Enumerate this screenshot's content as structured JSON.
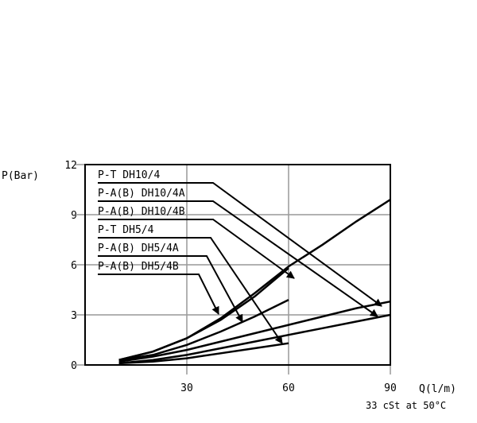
{
  "chart_data": {
    "type": "line",
    "y_label": "P(Bar)",
    "x_label": "Q(l/m)",
    "note": "33 cSt at 50°C",
    "xlim": [
      0,
      90
    ],
    "xticks": [
      30,
      60,
      90
    ],
    "ylim": [
      0,
      12
    ],
    "yticks": [
      0,
      3,
      6,
      9,
      12
    ],
    "grid": true,
    "color": "#000000",
    "series": [
      {
        "x": [
          10,
          20,
          30,
          40,
          50,
          60,
          70,
          80,
          90
        ],
        "values": [
          0.3,
          0.8,
          1.6,
          2.8,
          4.3,
          5.9,
          7.2,
          8.6,
          9.9
        ]
      },
      {
        "x": [
          10,
          20,
          30,
          40,
          50,
          60
        ],
        "values": [
          0.3,
          0.8,
          1.6,
          2.7,
          4.1,
          5.8
        ]
      },
      {
        "x": [
          10,
          20,
          30,
          40,
          50,
          60
        ],
        "values": [
          0.3,
          0.6,
          1.2,
          2.0,
          2.9,
          3.9
        ]
      },
      {
        "x": [
          10,
          20,
          30,
          40,
          50,
          60,
          70,
          80,
          90
        ],
        "values": [
          0.2,
          0.5,
          0.9,
          1.4,
          1.9,
          2.4,
          2.9,
          3.4,
          3.8
        ]
      },
      {
        "x": [
          10,
          20,
          30,
          40,
          50,
          60,
          70,
          80,
          90
        ],
        "values": [
          0.1,
          0.3,
          0.6,
          1.0,
          1.4,
          1.8,
          2.2,
          2.6,
          3.0
        ]
      },
      {
        "x": [
          10,
          20,
          30,
          40,
          50,
          60
        ],
        "values": [
          0.1,
          0.2,
          0.4,
          0.7,
          1.0,
          1.3
        ]
      }
    ],
    "annotations": [
      "P-T DH10/4",
      "P-A(B) DH10/4A",
      "P-A(B) DH10/4B",
      "P-T DH5/4",
      "P-A(B) DH5/4A",
      "P-A(B) DH5/4B"
    ]
  }
}
